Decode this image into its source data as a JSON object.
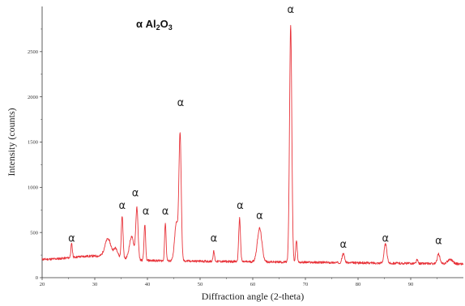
{
  "chart_data": {
    "type": "line",
    "title_parts": {
      "prefix": "α Al",
      "sub1": "2",
      "mid": "O",
      "sub2": "3"
    },
    "xlabel": "Diffraction angle (2-theta)",
    "ylabel": "Intensity (counts)",
    "xlim": [
      20,
      100
    ],
    "ylim": [
      0,
      3000
    ],
    "xticks": [
      "20",
      "30",
      "40",
      "50",
      "60",
      "70",
      "80",
      "90"
    ],
    "yticks": [
      "0",
      "500",
      "1000",
      "1500",
      "2000",
      "2500"
    ],
    "line_color": "#e8333a",
    "baseline": 200,
    "series": [
      {
        "peaks": [
          {
            "x": 25.6,
            "height": 150,
            "width": 0.3
          },
          {
            "x": 32.5,
            "height": 200,
            "width": 1.2
          },
          {
            "x": 34.0,
            "height": 100,
            "width": 0.8
          },
          {
            "x": 35.2,
            "height": 470,
            "width": 0.35
          },
          {
            "x": 37.0,
            "height": 250,
            "width": 0.9
          },
          {
            "x": 38.0,
            "height": 560,
            "width": 0.45
          },
          {
            "x": 39.5,
            "height": 400,
            "width": 0.3
          },
          {
            "x": 43.4,
            "height": 420,
            "width": 0.3
          },
          {
            "x": 45.5,
            "height": 420,
            "width": 0.7
          },
          {
            "x": 46.2,
            "height": 1380,
            "width": 0.45
          },
          {
            "x": 52.6,
            "height": 110,
            "width": 0.3
          },
          {
            "x": 57.5,
            "height": 480,
            "width": 0.35
          },
          {
            "x": 61.3,
            "height": 370,
            "width": 0.9
          },
          {
            "x": 67.2,
            "height": 2620,
            "width": 0.45
          },
          {
            "x": 68.3,
            "height": 250,
            "width": 0.3
          },
          {
            "x": 77.2,
            "height": 100,
            "width": 0.5
          },
          {
            "x": 85.2,
            "height": 210,
            "width": 0.55
          },
          {
            "x": 91.2,
            "height": 40,
            "width": 0.3
          },
          {
            "x": 95.3,
            "height": 110,
            "width": 0.5
          },
          {
            "x": 97.5,
            "height": 50,
            "width": 1.0
          }
        ]
      }
    ],
    "annotations": [
      {
        "text": "α",
        "x": 25.6,
        "y": 400
      },
      {
        "text": "α",
        "x": 35.2,
        "y": 760
      },
      {
        "text": "α",
        "x": 37.7,
        "y": 900
      },
      {
        "text": "α",
        "x": 39.7,
        "y": 700
      },
      {
        "text": "α",
        "x": 43.4,
        "y": 700
      },
      {
        "text": "α",
        "x": 46.3,
        "y": 1900
      },
      {
        "text": "α",
        "x": 52.6,
        "y": 400
      },
      {
        "text": "α",
        "x": 57.6,
        "y": 760
      },
      {
        "text": "α",
        "x": 61.3,
        "y": 650
      },
      {
        "text": "α",
        "x": 67.2,
        "y": 2930
      },
      {
        "text": "α",
        "x": 77.2,
        "y": 330
      },
      {
        "text": "α",
        "x": 85.2,
        "y": 400
      },
      {
        "text": "α",
        "x": 95.3,
        "y": 370
      }
    ]
  }
}
